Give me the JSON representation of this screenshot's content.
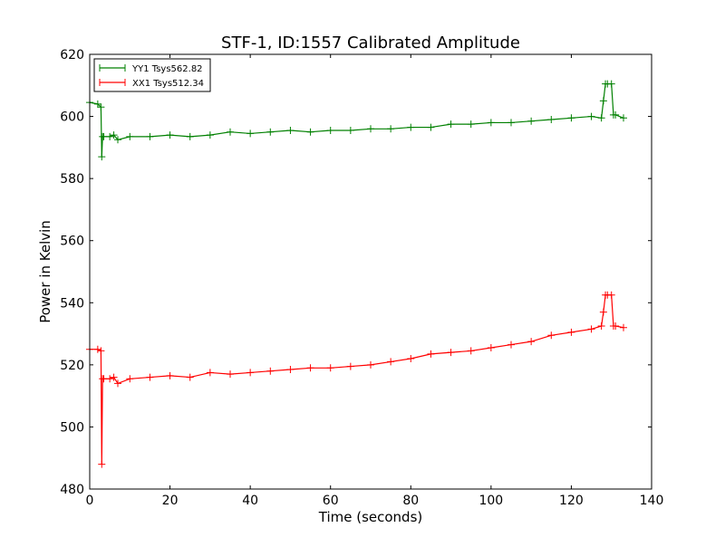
{
  "chart_data": {
    "type": "line",
    "title": "STF-1, ID:1557 Calibrated Amplitude",
    "xlabel": "Time (seconds)",
    "ylabel": "Power in Kelvin",
    "xlim": [
      0,
      140
    ],
    "ylim": [
      480,
      620
    ],
    "xticks": [
      0,
      20,
      40,
      60,
      80,
      100,
      120,
      140
    ],
    "yticks": [
      480,
      500,
      520,
      540,
      560,
      580,
      600,
      620
    ],
    "xtick_labels": [
      "0",
      "20",
      "40",
      "60",
      "80",
      "100",
      "120",
      "140"
    ],
    "ytick_labels": [
      "480",
      "500",
      "520",
      "540",
      "560",
      "580",
      "600",
      "620"
    ],
    "grid": false,
    "legend_position": "top-left",
    "marker": "+",
    "series": [
      {
        "name": "YY1 Tsys562.82",
        "color": "#008000",
        "x": [
          0,
          2,
          2.8,
          3,
          3.2,
          3.5,
          5,
          6,
          7,
          10,
          15,
          20,
          25,
          30,
          35,
          40,
          45,
          50,
          55,
          60,
          65,
          70,
          75,
          80,
          85,
          90,
          95,
          100,
          105,
          110,
          115,
          120,
          125,
          127.5,
          128,
          128.5,
          129,
          130,
          130.5,
          131,
          133
        ],
        "y": [
          604.5,
          604,
          603,
          587,
          593.5,
          593.5,
          593.5,
          594,
          592.5,
          593.5,
          593.5,
          594,
          593.5,
          594,
          595,
          594.5,
          595,
          595.5,
          595,
          595.5,
          595.5,
          596,
          596,
          596.5,
          596.5,
          597.5,
          597.5,
          598,
          598,
          598.5,
          599,
          599.5,
          600,
          599.5,
          605,
          610.5,
          610.5,
          610.5,
          600.5,
          600.5,
          599.5
        ]
      },
      {
        "name": "XX1 Tsys512.34",
        "color": "#ff0000",
        "x": [
          0,
          2,
          2.8,
          3,
          3.2,
          3.5,
          5,
          6,
          7,
          10,
          15,
          20,
          25,
          30,
          35,
          40,
          45,
          50,
          55,
          60,
          65,
          70,
          75,
          80,
          85,
          90,
          95,
          100,
          105,
          110,
          115,
          120,
          125,
          127.5,
          128,
          128.5,
          129,
          130,
          130.5,
          131,
          133
        ],
        "y": [
          525,
          525,
          524.5,
          488,
          515.5,
          515.5,
          515.5,
          516,
          514,
          515.5,
          516,
          516.5,
          516,
          517.5,
          517,
          517.5,
          518,
          518.5,
          519,
          519,
          519.5,
          520,
          521,
          522,
          523.5,
          524,
          524.5,
          525.5,
          526.5,
          527.5,
          529.5,
          530.5,
          531.5,
          532.5,
          537,
          542.5,
          542.5,
          542.5,
          532.5,
          532.5,
          532
        ]
      }
    ]
  }
}
